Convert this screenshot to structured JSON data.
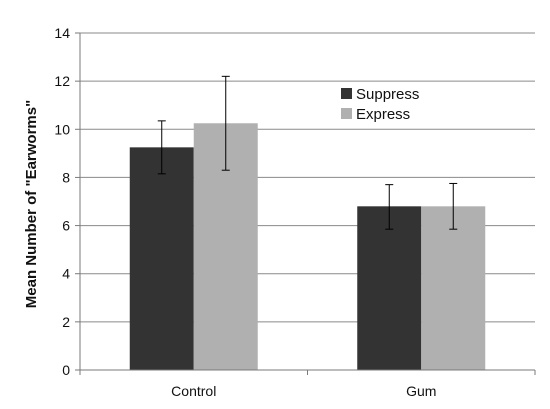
{
  "chart_data": {
    "type": "bar",
    "categories": [
      "Control",
      "Gum"
    ],
    "series": [
      {
        "name": "Suppress",
        "color": "#333333",
        "values": [
          9.25,
          6.8
        ],
        "error_low": [
          8.15,
          5.85
        ],
        "error_high": [
          10.35,
          7.7
        ]
      },
      {
        "name": "Express",
        "color": "#b0b0b0",
        "values": [
          10.25,
          6.8
        ],
        "error_low": [
          8.3,
          5.85
        ],
        "error_high": [
          12.2,
          7.75
        ]
      }
    ],
    "ylabel": "Mean Number of \"Earworms\"",
    "xlabel": "",
    "ylim": [
      0,
      14
    ],
    "yticks": [
      0,
      2,
      4,
      6,
      8,
      10,
      12,
      14
    ],
    "grid": true,
    "legend": "top-right"
  }
}
